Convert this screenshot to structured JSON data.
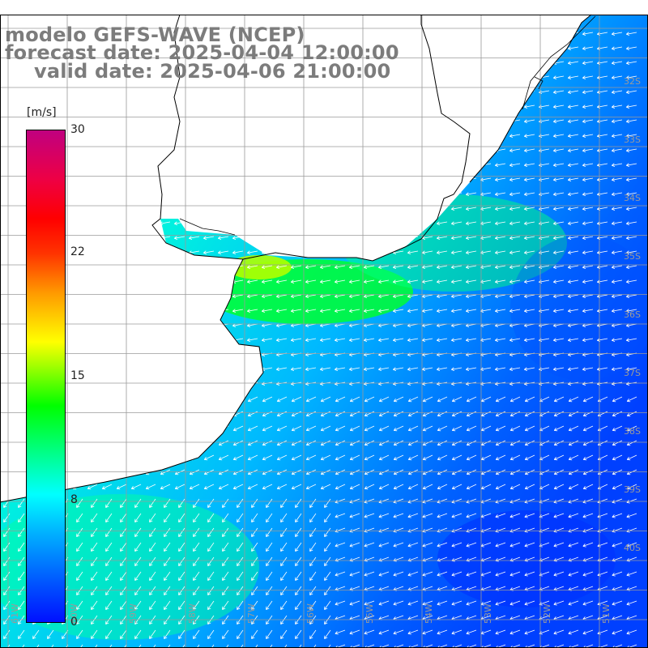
{
  "title": {
    "line1": "modelo GEFS-WAVE (NCEP)",
    "line2": "forecast date: 2025-04-04 12:00:00",
    "line3": "valid date: 2025-04-06 21:00:00"
  },
  "colorbar": {
    "unit": "[m/s]",
    "ticks": [
      "30",
      "22",
      "15",
      "8",
      "0"
    ],
    "min": 0,
    "max": 30,
    "colors": [
      "#0010ff",
      "#0055ff",
      "#00b0ff",
      "#00ffff",
      "#00ff80",
      "#00ff00",
      "#a0ff00",
      "#ffff00",
      "#ff9900",
      "#ff3300",
      "#ff0000",
      "#ee0044",
      "#c00080"
    ]
  },
  "map": {
    "lat_labels": [
      "32S",
      "33S",
      "34S",
      "35S",
      "36S",
      "37S",
      "38S",
      "39S",
      "40S"
    ],
    "lon_labels": [
      "61W",
      "60W",
      "59W",
      "58W",
      "57W",
      "56W",
      "55W",
      "54W",
      "53W",
      "52W",
      "51W"
    ],
    "land_color": "#ffffff",
    "grid_color": "#9a9a9a",
    "coast_color": "#000000"
  }
}
